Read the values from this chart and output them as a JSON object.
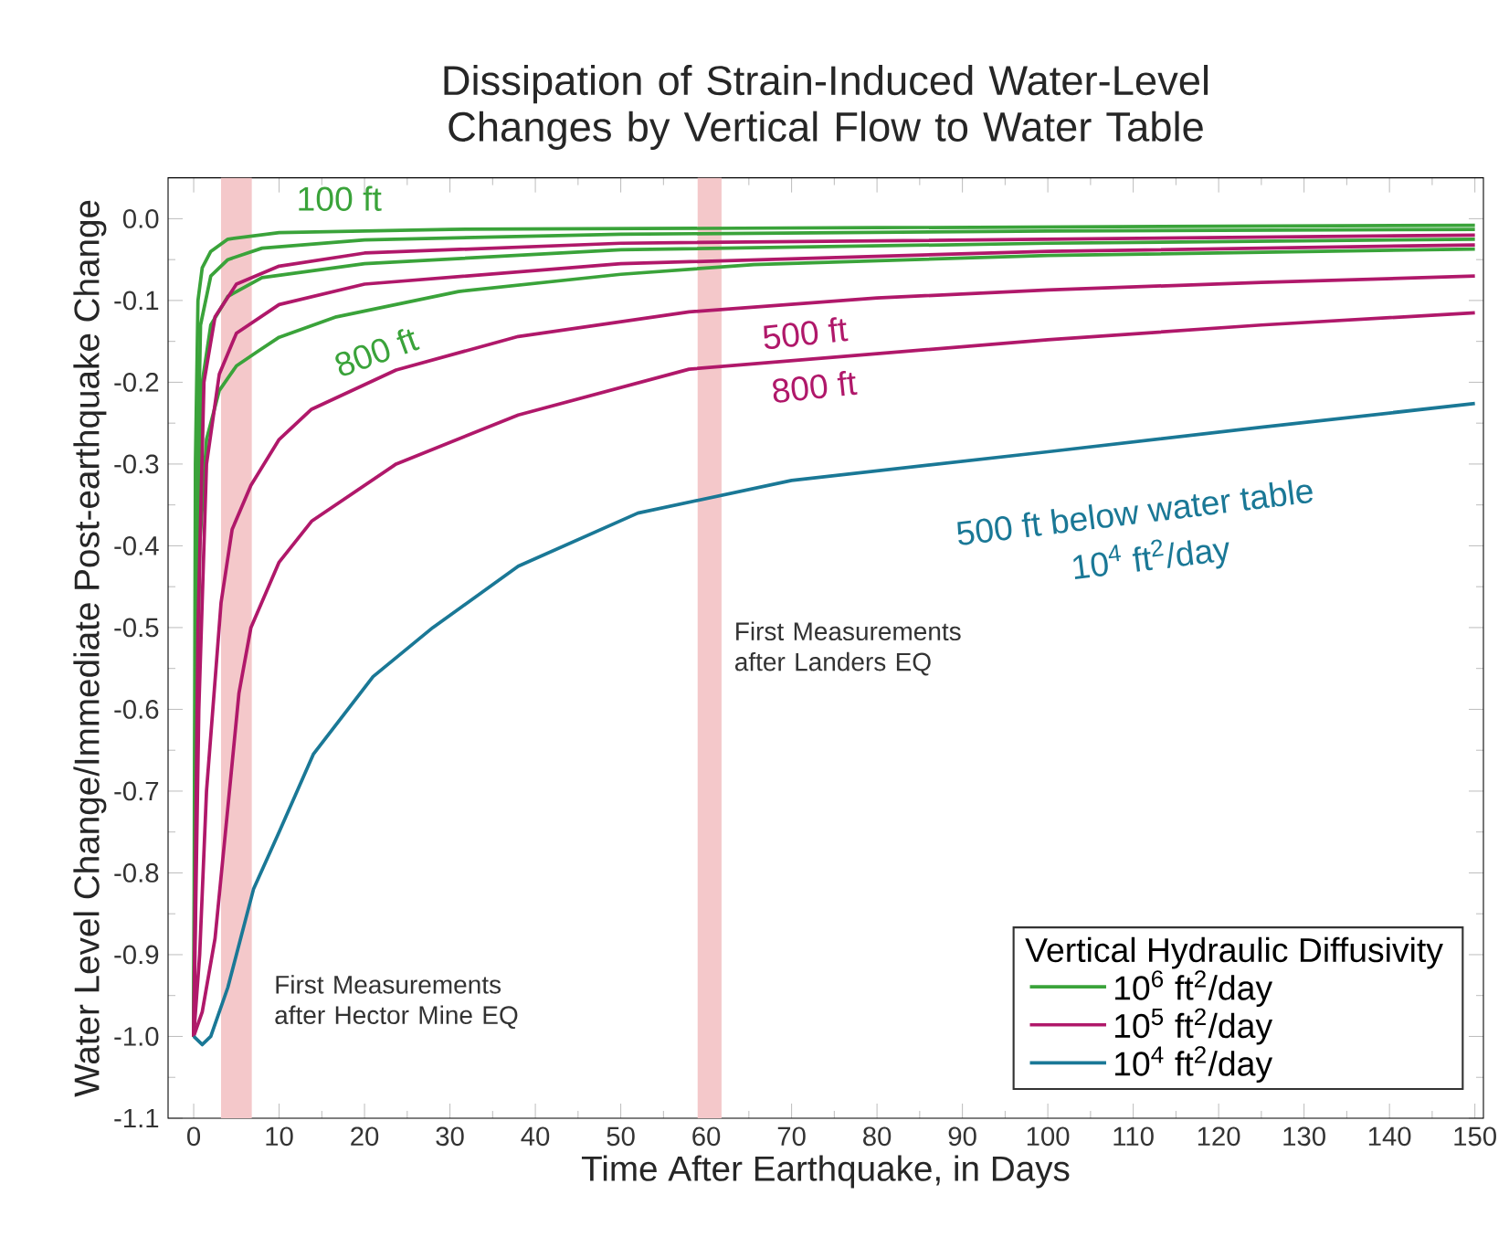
{
  "chart_data": {
    "type": "line",
    "title": "Dissipation of Strain-Induced Water-Level Changes by Vertical Flow to Water Table",
    "xlabel": "Time After Earthquake, in Days",
    "ylabel": "Water Level Change/Immediate Post-earthquake Change",
    "legend_title": "Vertical Hydraulic Diffusivity",
    "legend": "bottom right",
    "xlim": [
      -3,
      151
    ],
    "ylim": [
      -1.1,
      0.05
    ],
    "xticks": [
      0,
      10,
      20,
      30,
      40,
      50,
      60,
      70,
      80,
      90,
      100,
      110,
      120,
      130,
      140,
      150
    ],
    "yticks": [
      {
        "value": 0,
        "label": "0.0"
      },
      {
        "value": -0.1,
        "label": "-0.1"
      },
      {
        "value": -0.2,
        "label": "-0.2"
      },
      {
        "value": -0.3,
        "label": "-0.3"
      },
      {
        "value": -0.4,
        "label": "-0.4"
      },
      {
        "value": -0.5,
        "label": "-0.5"
      },
      {
        "value": -0.6,
        "label": "-0.6"
      },
      {
        "value": -0.7,
        "label": "-0.7"
      },
      {
        "value": -0.8,
        "label": "-0.8"
      },
      {
        "value": -0.9,
        "label": "-0.9"
      },
      {
        "value": -1.0,
        "label": "-1.0"
      },
      {
        "value": -1.1,
        "label": "-1.1"
      }
    ],
    "bands": [
      {
        "axis": "x",
        "from": 3.2,
        "to": 6.8,
        "label": "First Measurements after Hector Mine EQ",
        "color": "#f4c8ca"
      },
      {
        "axis": "x",
        "from": 59,
        "to": 61.8,
        "label": "First Measurements after Landers EQ",
        "color": "#f4c8ca"
      }
    ],
    "series": [
      {
        "name": "10$^{6}$ ft$^{2}$/day",
        "color": "#3aa33a",
        "x": [
          0,
          0.2,
          0.5,
          1,
          2,
          4,
          10,
          30,
          80,
          150
        ],
        "values": [
          -1.0,
          -0.3,
          -0.1,
          -0.06,
          -0.04,
          -0.025,
          -0.017,
          -0.013,
          -0.011,
          -0.008
        ]
      },
      {
        "color": "#3aa33a",
        "x": [
          0,
          0.3,
          0.8,
          2,
          4,
          8,
          20,
          50,
          100,
          150
        ],
        "values": [
          -1.0,
          -0.4,
          -0.13,
          -0.07,
          -0.05,
          -0.036,
          -0.026,
          -0.019,
          -0.015,
          -0.013
        ]
      },
      {
        "color": "#3aa33a",
        "x": [
          0,
          0.4,
          1,
          2,
          4,
          8,
          20,
          50,
          100,
          150
        ],
        "values": [
          -1.0,
          -0.5,
          -0.2,
          -0.13,
          -0.095,
          -0.072,
          -0.055,
          -0.038,
          -0.03,
          -0.025
        ]
      },
      {
        "color": "#3aa33a",
        "x": [
          0,
          0.3,
          0.7,
          1.5,
          3,
          5,
          7.4,
          10,
          16.7,
          31,
          50,
          65.6,
          100,
          150
        ],
        "values": [
          -1.0,
          -0.7,
          -0.4,
          -0.27,
          -0.21,
          -0.18,
          -0.163,
          -0.145,
          -0.12,
          -0.089,
          -0.068,
          -0.056,
          -0.045,
          -0.037
        ]
      },
      {
        "name": "10$^{5}$ ft$^{2}$/day",
        "color": "#b0186a",
        "x": [
          0,
          0.5,
          1.2,
          2.5,
          5,
          10,
          20,
          50,
          100,
          150
        ],
        "values": [
          -1.0,
          -0.5,
          -0.2,
          -0.12,
          -0.08,
          -0.058,
          -0.042,
          -0.03,
          -0.025,
          -0.02
        ]
      },
      {
        "color": "#b0186a",
        "x": [
          0,
          0.6,
          1.5,
          3,
          5,
          10,
          20,
          50,
          100,
          150
        ],
        "values": [
          -1.0,
          -0.6,
          -0.3,
          -0.19,
          -0.14,
          -0.105,
          -0.08,
          -0.055,
          -0.04,
          -0.032
        ]
      },
      {
        "color": "#b0186a",
        "x": [
          0,
          0.7,
          1.5,
          3.2,
          4.5,
          6.7,
          10,
          13.8,
          23.7,
          38,
          58,
          80,
          100,
          125,
          150
        ],
        "values": [
          -1.0,
          -0.9,
          -0.7,
          -0.47,
          -0.38,
          -0.326,
          -0.27,
          -0.233,
          -0.185,
          -0.144,
          -0.114,
          -0.097,
          -0.087,
          -0.078,
          -0.07
        ]
      },
      {
        "color": "#b0186a",
        "x": [
          0,
          1,
          2.5,
          4,
          5.3,
          6.7,
          10,
          13.8,
          23.7,
          38,
          58,
          80,
          100,
          125,
          150
        ],
        "values": [
          -1.0,
          -0.97,
          -0.88,
          -0.72,
          -0.58,
          -0.5,
          -0.42,
          -0.37,
          -0.3,
          -0.24,
          -0.184,
          -0.165,
          -0.148,
          -0.13,
          -0.115
        ]
      },
      {
        "name": "10$^{4}$ ft$^{2}$/day",
        "color": "#1a7896",
        "x": [
          0,
          1,
          2,
          4,
          7,
          10,
          14,
          21,
          28,
          38,
          52,
          70,
          100,
          125,
          150
        ],
        "values": [
          -1.0,
          -1.01,
          -1.0,
          -0.94,
          -0.82,
          -0.75,
          -0.655,
          -0.56,
          -0.5,
          -0.425,
          -0.36,
          -0.32,
          -0.285,
          -0.255,
          -0.226
        ]
      }
    ],
    "annotations": [
      "100 ft",
      "800 ft",
      "500 ft",
      "800 ft",
      "500 ft below water table",
      "10$^{4}$ ft$^{2}$/day"
    ]
  }
}
